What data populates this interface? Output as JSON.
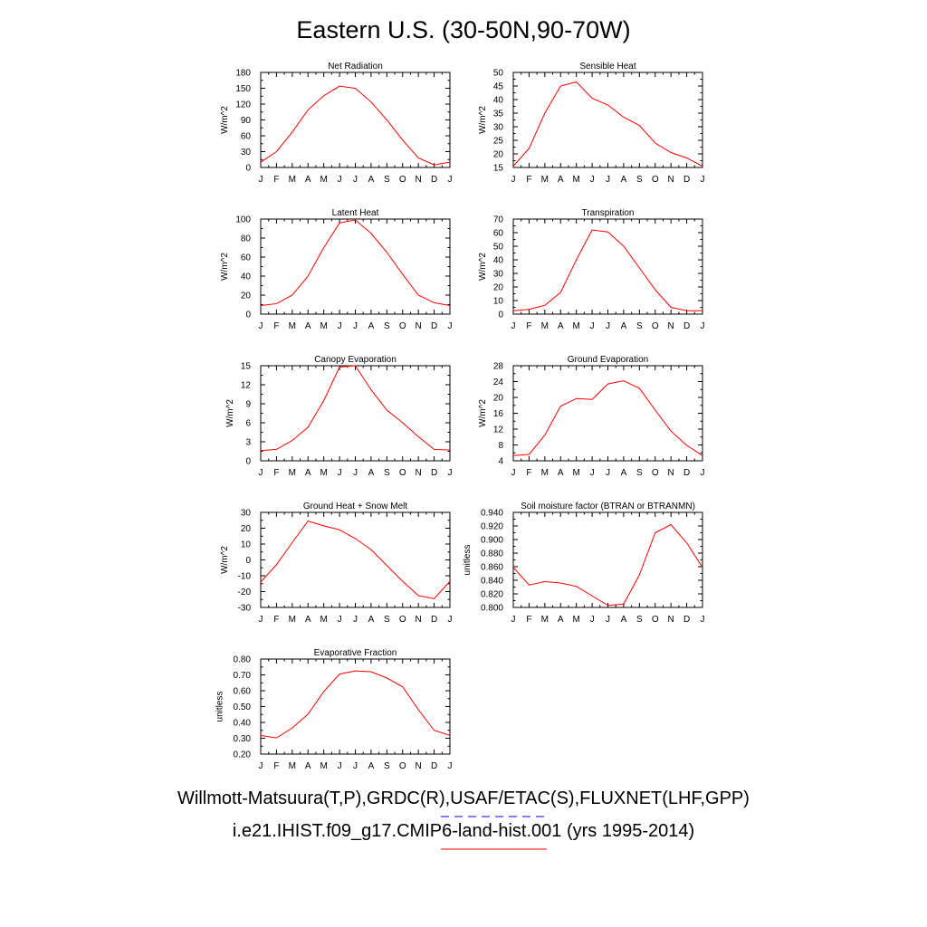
{
  "figure": {
    "title": "Eastern U.S. (30-50N,90-70W)",
    "legend_line_1": "Willmott-Matsuura(T,P),GRDC(R),USAF/ETAC(S),FLUXNET(LHF,GPP)",
    "legend_line_2": "i.e21.IHIST.f09_g17.CMIP6-land-hist.001 (yrs 1995-2014)",
    "obs_line_color": "#0000ff",
    "model_line_color": "#ff0000"
  },
  "chart_data": [
    {
      "type": "line",
      "title": "Net Radiation",
      "ylabel": "W/m^2",
      "categories": [
        "J",
        "F",
        "M",
        "A",
        "M",
        "J",
        "J",
        "A",
        "S",
        "O",
        "N",
        "D",
        "J"
      ],
      "ylim": [
        0,
        180
      ],
      "yticks": [
        "0",
        "30",
        "60",
        "90",
        "120",
        "150",
        "180"
      ],
      "series": [
        {
          "color": "#ff0000",
          "values": [
            10,
            30,
            67,
            109,
            136,
            154,
            150,
            124,
            90,
            52,
            18,
            5,
            10
          ]
        }
      ]
    },
    {
      "type": "line",
      "title": "Sensible Heat",
      "ylabel": "W/m^2",
      "categories": [
        "J",
        "F",
        "M",
        "A",
        "M",
        "J",
        "J",
        "A",
        "S",
        "O",
        "N",
        "D",
        "J"
      ],
      "ylim": [
        15,
        50
      ],
      "yticks": [
        "15",
        "20",
        "25",
        "30",
        "35",
        "40",
        "45",
        "50"
      ],
      "series": [
        {
          "color": "#ff0000",
          "values": [
            15.5,
            22,
            35,
            45,
            46.5,
            40.5,
            38,
            33.5,
            30.5,
            24,
            20.5,
            18.5,
            15.5
          ]
        }
      ]
    },
    {
      "type": "line",
      "title": "Latent Heat",
      "ylabel": "W/m^2",
      "categories": [
        "J",
        "F",
        "M",
        "A",
        "M",
        "J",
        "J",
        "A",
        "S",
        "O",
        "N",
        "D",
        "J"
      ],
      "ylim": [
        0,
        100
      ],
      "yticks": [
        "0",
        "20",
        "40",
        "60",
        "80",
        "100"
      ],
      "series": [
        {
          "color": "#ff0000",
          "values": [
            9,
            11,
            20,
            40,
            70,
            96,
            99,
            85,
            65,
            42,
            20,
            12,
            9
          ]
        }
      ]
    },
    {
      "type": "line",
      "title": "Transpiration",
      "ylabel": "W/m^2",
      "categories": [
        "J",
        "F",
        "M",
        "A",
        "M",
        "J",
        "J",
        "A",
        "S",
        "O",
        "N",
        "D",
        "J"
      ],
      "ylim": [
        0,
        70
      ],
      "yticks": [
        "0",
        "10",
        "20",
        "30",
        "40",
        "50",
        "60",
        "70"
      ],
      "series": [
        {
          "color": "#ff0000",
          "values": [
            2.5,
            3.5,
            6.5,
            16,
            40,
            62,
            60.5,
            50,
            34,
            18,
            5,
            2.5,
            2.5
          ]
        }
      ]
    },
    {
      "type": "line",
      "title": "Canopy Evaporation",
      "ylabel": "W/m^2",
      "categories": [
        "J",
        "F",
        "M",
        "A",
        "M",
        "J",
        "J",
        "A",
        "S",
        "O",
        "N",
        "D",
        "J"
      ],
      "ylim": [
        0,
        15
      ],
      "yticks": [
        "0",
        "3",
        "6",
        "9",
        "12",
        "15"
      ],
      "series": [
        {
          "color": "#ff0000",
          "values": [
            1.6,
            1.8,
            3.2,
            5.3,
            9.5,
            14.8,
            15.0,
            11.2,
            8.0,
            6.0,
            3.8,
            1.8,
            1.7
          ]
        }
      ]
    },
    {
      "type": "line",
      "title": "Ground Evaporation",
      "ylabel": "W/m^2",
      "categories": [
        "J",
        "F",
        "M",
        "A",
        "M",
        "J",
        "J",
        "A",
        "S",
        "O",
        "N",
        "D",
        "J"
      ],
      "ylim": [
        4,
        28
      ],
      "yticks": [
        "4",
        "8",
        "12",
        "16",
        "20",
        "24",
        "28"
      ],
      "series": [
        {
          "color": "#ff0000",
          "values": [
            5.3,
            5.6,
            10.5,
            17.8,
            19.7,
            19.5,
            23.4,
            24.2,
            22.3,
            16.8,
            11.5,
            7.9,
            5.3
          ]
        }
      ]
    },
    {
      "type": "line",
      "title": "Ground Heat + Snow Melt",
      "ylabel": "W/m^2",
      "categories": [
        "J",
        "F",
        "M",
        "A",
        "M",
        "J",
        "J",
        "A",
        "S",
        "O",
        "N",
        "D",
        "J"
      ],
      "ylim": [
        -30,
        30
      ],
      "yticks": [
        "-30",
        "-20",
        "-10",
        "0",
        "10",
        "20",
        "30"
      ],
      "series": [
        {
          "color": "#ff0000",
          "values": [
            -14,
            -3,
            11,
            24.5,
            21.5,
            19,
            13.5,
            6.5,
            -3.5,
            -13.5,
            -22.5,
            -24.5,
            -13.5
          ]
        }
      ]
    },
    {
      "type": "line",
      "title": "Soil moisture factor (BTRAN or BTRANMN)",
      "ylabel": "unitless",
      "categories": [
        "J",
        "F",
        "M",
        "A",
        "M",
        "J",
        "J",
        "A",
        "S",
        "O",
        "N",
        "D",
        "J"
      ],
      "ylim": [
        0.8,
        0.94
      ],
      "yticks": [
        "0.800",
        "0.820",
        "0.840",
        "0.860",
        "0.880",
        "0.900",
        "0.920",
        "0.940"
      ],
      "series": [
        {
          "color": "#ff0000",
          "values": [
            0.859,
            0.833,
            0.838,
            0.836,
            0.831,
            0.817,
            0.803,
            0.805,
            0.848,
            0.91,
            0.922,
            0.895,
            0.859
          ]
        }
      ]
    },
    {
      "type": "line",
      "title": "Evaporative Fraction",
      "ylabel": "unitless",
      "categories": [
        "J",
        "F",
        "M",
        "A",
        "M",
        "J",
        "J",
        "A",
        "S",
        "O",
        "N",
        "D",
        "J"
      ],
      "ylim": [
        0.2,
        0.8
      ],
      "yticks": [
        "0.20",
        "0.30",
        "0.40",
        "0.50",
        "0.60",
        "0.70",
        "0.80"
      ],
      "series": [
        {
          "color": "#ff0000",
          "values": [
            0.318,
            0.302,
            0.365,
            0.452,
            0.595,
            0.705,
            0.725,
            0.72,
            0.68,
            0.625,
            0.48,
            0.35,
            0.318
          ]
        }
      ]
    }
  ]
}
